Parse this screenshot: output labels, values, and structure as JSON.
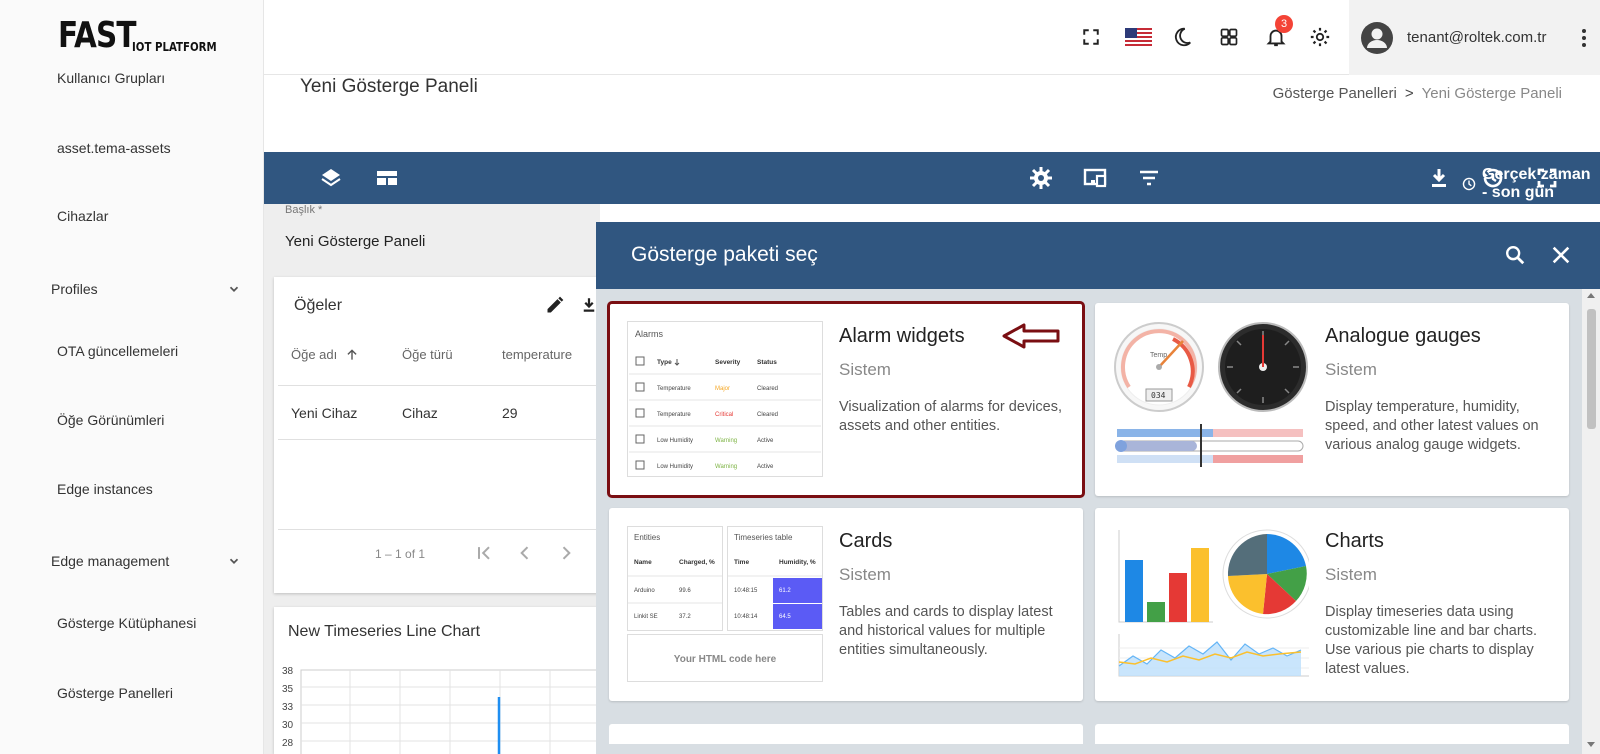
{
  "logo": {
    "main": "FAST",
    "sub": "IOT PLATFORM"
  },
  "sidebar": {
    "items": [
      {
        "label": "Kullanıcı Grupları"
      },
      {
        "label": "asset.tema-assets"
      },
      {
        "label": "Cihazlar"
      },
      {
        "label": "Profiles",
        "expandable": true
      },
      {
        "label": "OTA güncellemeleri"
      },
      {
        "label": "Öğe Görünümleri"
      },
      {
        "label": "Edge instances"
      },
      {
        "label": "Edge management",
        "expandable": true
      },
      {
        "label": "Gösterge Kütüphanesi"
      },
      {
        "label": "Gösterge Panelleri"
      }
    ]
  },
  "header": {
    "notification_count": "3",
    "user_email": "tenant@roltek.com.tr",
    "icons": [
      "fullscreen-icon",
      "us-flag-icon",
      "dark-mode-icon",
      "apps-grid-icon",
      "bell-icon",
      "gear-icon",
      "account-icon",
      "more-vert-icon"
    ]
  },
  "page": {
    "title": "Yeni Gösterge Paneli",
    "breadcrumb": {
      "parent": "Gösterge Panelleri",
      "separator": ">",
      "current": "Yeni Gösterge Paneli"
    }
  },
  "toolbar": {
    "time_window": "Gerçek zaman - son gün",
    "icons": [
      "layers-icon",
      "layout-icon",
      "settings-icon",
      "devices-icon",
      "filter-icon",
      "clock-icon",
      "download-icon",
      "history-icon",
      "fullscreen-icon"
    ]
  },
  "dashboard": {
    "title_field_label": "Başlık *",
    "title_field_value": "Yeni Gösterge Paneli",
    "entities_card": {
      "title": "Öğeler",
      "columns": [
        "Öğe adı",
        "Öğe türü",
        "temperature"
      ],
      "rows": [
        {
          "name": "Yeni Cihaz",
          "type": "Cihaz",
          "temperature": "29"
        }
      ],
      "pagination": "1 – 1 of 1"
    },
    "chart_card": {
      "title": "New Timeseries Line Chart",
      "y_ticks": [
        "38",
        "35",
        "33",
        "30",
        "28"
      ]
    }
  },
  "dialog": {
    "title": "Gösterge paketi seç",
    "bundles": [
      {
        "title": "Alarm widgets",
        "source": "Sistem",
        "description": "Visualization of alarms for devices, assets and other entities.",
        "selected": true,
        "preview": {
          "title": "Alarms",
          "columns": [
            "Type",
            "Severity",
            "Status"
          ],
          "rows": [
            {
              "type": "Temperature",
              "severity": "Major",
              "status": "Cleared"
            },
            {
              "type": "Temperature",
              "severity": "Critical",
              "status": "Cleared"
            },
            {
              "type": "Low Humidity",
              "severity": "Warning",
              "status": "Active"
            },
            {
              "type": "Low Humidity",
              "severity": "Warning",
              "status": "Active"
            }
          ]
        }
      },
      {
        "title": "Analogue gauges",
        "source": "Sistem",
        "description": "Display temperature, humidity, speed, and other latest values on various analog gauge widgets.",
        "preview": {
          "gauge_label": "Temp",
          "gauge_value": "034"
        }
      },
      {
        "title": "Cards",
        "source": "Sistem",
        "description": "Tables and cards to display latest and historical values for multiple entities simultaneously.",
        "preview": {
          "entities_title": "Entities",
          "entities_columns": [
            "Name",
            "Charged, %"
          ],
          "entities_rows": [
            {
              "name": "Arduino",
              "charged": "99.6"
            },
            {
              "name": "Linkit SE",
              "charged": "37.2"
            }
          ],
          "ts_title": "Timeseries table",
          "ts_columns": [
            "Time",
            "Humidity, %"
          ],
          "ts_rows": [
            {
              "time": "10:48:15",
              "humidity": "61.2"
            },
            {
              "time": "10:48:14",
              "humidity": "64.5"
            }
          ],
          "html_card": "Your HTML code here"
        }
      },
      {
        "title": "Charts",
        "source": "Sistem",
        "description": "Display timeseries data using customizable line and bar charts. Use various pie charts to display latest values."
      }
    ]
  },
  "colors": {
    "primary": "#305680",
    "selected_outline": "#7a0e12",
    "badge": "#f44336"
  }
}
